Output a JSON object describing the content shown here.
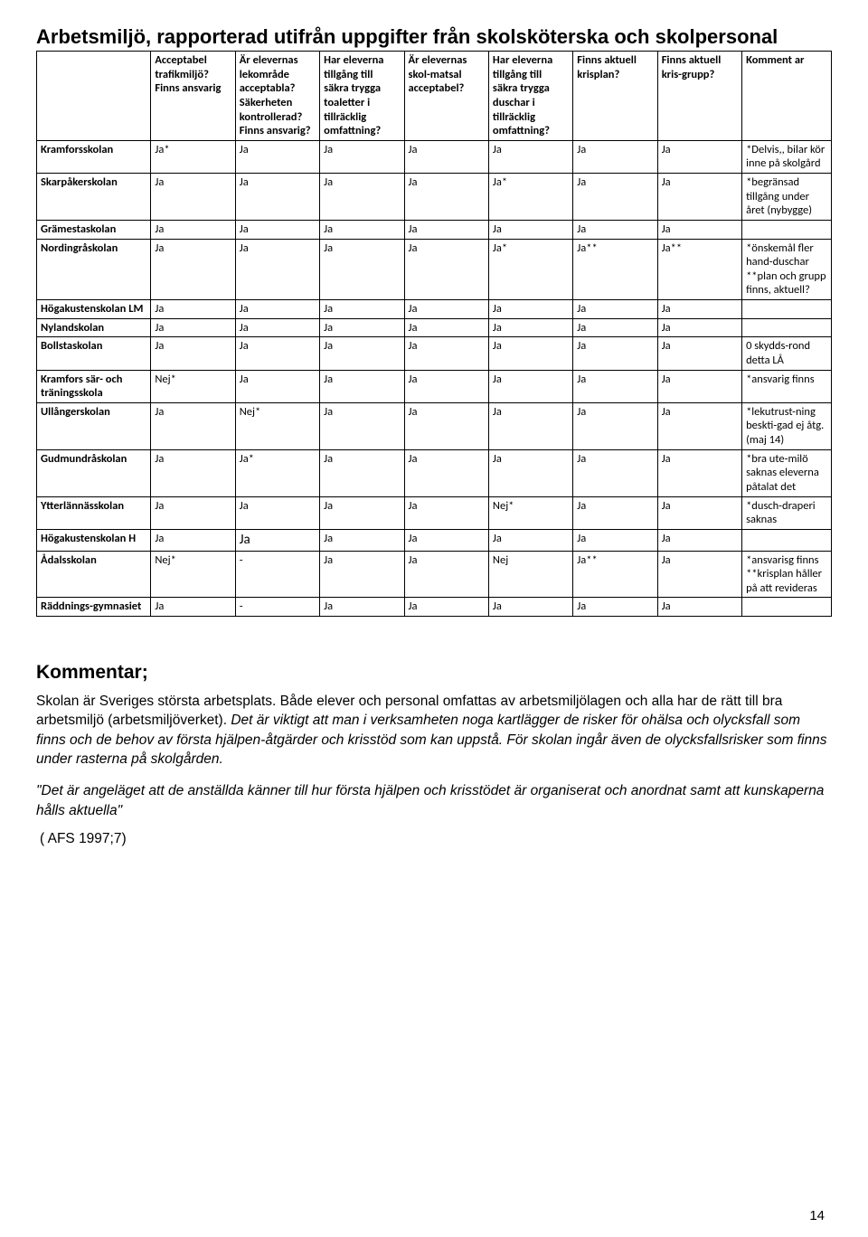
{
  "page": {
    "title": "Arbetsmiljö, rapporterad utifrån uppgifter från skolsköterska och skolpersonal",
    "page_number": "14"
  },
  "table": {
    "headers": [
      "",
      "Acceptabel trafikmiljö? Finns ansvarig",
      "Är elevernas lekområde acceptabla? Säkerheten kontrollerad? Finns ansvarig?",
      "Har eleverna tillgång till säkra trygga toaletter i tillräcklig omfattning?",
      "Är elevernas skol-matsal acceptabel?",
      "Har eleverna tillgång till säkra trygga duschar i tillräcklig omfattning?",
      "Finns aktuell krisplan?",
      "Finns aktuell kris-grupp?",
      "Komment ar"
    ],
    "rows": [
      {
        "school": "Kramforsskolan",
        "c": [
          "Ja*",
          "Ja",
          "Ja",
          "Ja",
          "Ja",
          "Ja",
          "Ja"
        ],
        "comment": "*Delvis,, bilar kör inne på skolgård"
      },
      {
        "school": "Skarpåkerskolan",
        "c": [
          "Ja",
          "Ja",
          "Ja",
          "Ja",
          "Ja*",
          "Ja",
          "Ja"
        ],
        "comment": "*begränsad tillgång under året (nybygge)"
      },
      {
        "school": "Grämestaskolan",
        "c": [
          "Ja",
          "Ja",
          "Ja",
          "Ja",
          "Ja",
          "Ja",
          "Ja"
        ],
        "comment": ""
      },
      {
        "school": "Nordingråskolan",
        "c": [
          "Ja",
          "Ja",
          "Ja",
          "Ja",
          "Ja*",
          "Ja**",
          "Ja**"
        ],
        "comment": "*önskemål fler hand-duschar **plan och grupp finns, aktuell?"
      },
      {
        "school": "Högakustenskolan LM",
        "c": [
          "Ja",
          "Ja",
          "Ja",
          "Ja",
          "Ja",
          "Ja",
          "Ja"
        ],
        "comment": ""
      },
      {
        "school": "Nylandskolan",
        "c": [
          "Ja",
          "Ja",
          "Ja",
          "Ja",
          "Ja",
          "Ja",
          "Ja"
        ],
        "comment": ""
      },
      {
        "school": "Bollstaskolan",
        "c": [
          "Ja",
          "Ja",
          "Ja",
          "Ja",
          "Ja",
          "Ja",
          "Ja"
        ],
        "comment": "0 skydds-rond detta LÅ"
      },
      {
        "school": "Kramfors sär- och träningsskola",
        "c": [
          "Nej*",
          "Ja",
          "Ja",
          "Ja",
          "Ja",
          "Ja",
          "Ja"
        ],
        "comment": "*ansvarig finns"
      },
      {
        "school": "Ullångerskolan",
        "c": [
          "Ja",
          "Nej*",
          "Ja",
          "Ja",
          "Ja",
          "Ja",
          "Ja"
        ],
        "comment": "*lekutrust-ning beskti-gad ej åtg. (maj 14)"
      },
      {
        "school": "Gudmundråskolan",
        "c": [
          "Ja",
          "Ja*",
          "Ja",
          "Ja",
          "Ja",
          "Ja",
          "Ja"
        ],
        "comment": "*bra ute-milö saknas eleverna påtalat det"
      },
      {
        "school": "Ytterlännässkolan",
        "c": [
          "Ja",
          "Ja",
          "Ja",
          "Ja",
          "Nej*",
          "Ja",
          "Ja"
        ],
        "comment": "*dusch-draperi saknas"
      },
      {
        "school": "Högakustenskolan H",
        "c": [
          "Ja",
          "Ja",
          "Ja",
          "Ja",
          "Ja",
          "Ja",
          "Ja"
        ],
        "comment": "",
        "big_col": 2
      },
      {
        "school": "Ådalsskolan",
        "c": [
          "Nej*",
          "-",
          "Ja",
          "Ja",
          "Nej",
          "Ja**",
          "Ja"
        ],
        "comment": "*ansvarisg finns **krisplan håller på att revideras"
      },
      {
        "school": "Räddnings-gymnasiet",
        "c": [
          "Ja",
          "-",
          "Ja",
          "Ja",
          "Ja",
          "Ja",
          "Ja"
        ],
        "comment": ""
      }
    ]
  },
  "commentary": {
    "heading": "Kommentar;",
    "para1_plain": "Skolan är Sveriges största arbetsplats. Både elever och personal omfattas av arbetsmiljölagen och alla har de rätt till bra arbetsmiljö (arbetsmiljöverket). ",
    "para1_italic": "Det är viktigt att man i verksamheten noga kartlägger de risker för ohälsa och olycksfall som finns och de behov av första hjälpen-åtgärder och krisstöd som kan uppstå. För skolan ingår även de olycksfallsrisker som finns under rasterna på skolgården.",
    "quote": "\"Det är angeläget att de anställda känner till hur första hjälpen och krisstödet är organiserat och anordnat samt att kunskaperna hålls aktuella\"",
    "reference": "( AFS 1997;7)"
  }
}
